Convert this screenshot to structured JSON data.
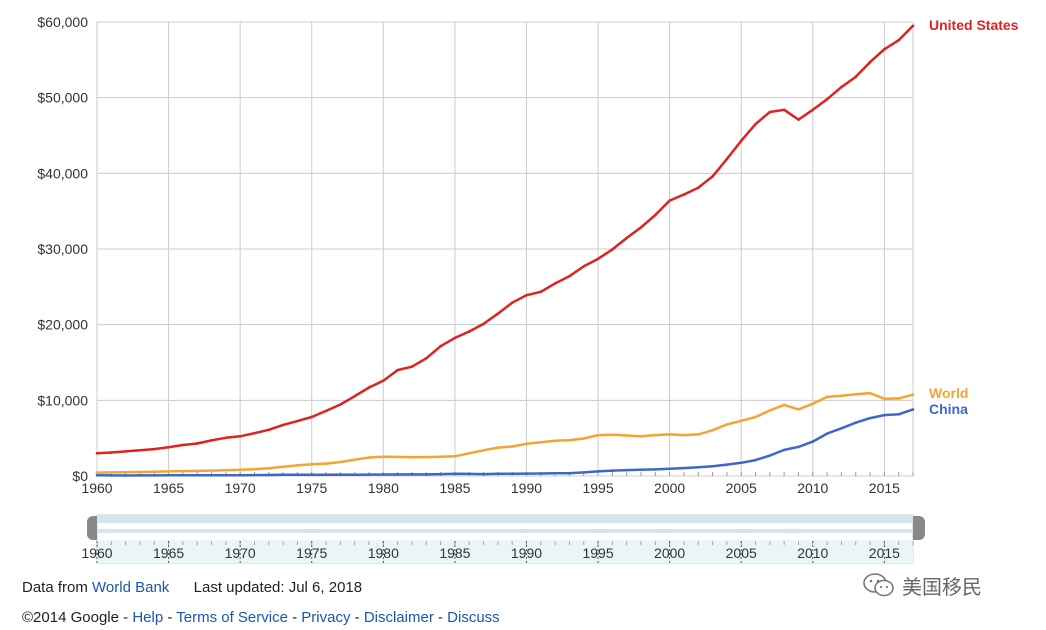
{
  "chart_data": {
    "type": "line",
    "title": "",
    "xlabel": "",
    "ylabel": "",
    "xlim": [
      1960,
      2017
    ],
    "ylim": [
      0,
      60000
    ],
    "x_ticks": [
      "1960",
      "1965",
      "1970",
      "1975",
      "1980",
      "1985",
      "1990",
      "1995",
      "2000",
      "2005",
      "2010",
      "2015"
    ],
    "y_ticks": [
      "$0",
      "$10,000",
      "$20,000",
      "$30,000",
      "$40,000",
      "$50,000",
      "$60,000"
    ],
    "grid": true,
    "legend": "inline labels at right end of lines",
    "x": [
      1960,
      1961,
      1962,
      1963,
      1964,
      1965,
      1966,
      1967,
      1968,
      1969,
      1970,
      1971,
      1972,
      1973,
      1974,
      1975,
      1976,
      1977,
      1978,
      1979,
      1980,
      1981,
      1982,
      1983,
      1984,
      1985,
      1986,
      1987,
      1988,
      1989,
      1990,
      1991,
      1992,
      1993,
      1994,
      1995,
      1996,
      1997,
      1998,
      1999,
      2000,
      2001,
      2002,
      2003,
      2004,
      2005,
      2006,
      2007,
      2008,
      2009,
      2010,
      2011,
      2012,
      2013,
      2014,
      2015,
      2016,
      2017
    ],
    "series": [
      {
        "name": "United States",
        "color": "#dd2222",
        "values": [
          3000,
          3100,
          3250,
          3400,
          3550,
          3800,
          4100,
          4300,
          4700,
          5050,
          5250,
          5650,
          6100,
          6750,
          7250,
          7800,
          8600,
          9450,
          10550,
          11700,
          12600,
          14000,
          14450,
          15550,
          17150,
          18250,
          19100,
          20100,
          21450,
          22900,
          23900,
          24350,
          25450,
          26400,
          27700,
          28700,
          29950,
          31450,
          32850,
          34500,
          36400,
          37200,
          38100,
          39600,
          41900,
          44300,
          46500,
          48100,
          48400,
          47100,
          48400,
          49800,
          51400,
          52750,
          54700,
          56400,
          57600,
          59500
        ]
      },
      {
        "name": "World",
        "color": "#f4a430",
        "values": [
          450,
          480,
          500,
          530,
          570,
          610,
          650,
          680,
          710,
          760,
          820,
          890,
          1020,
          1220,
          1400,
          1540,
          1640,
          1850,
          2150,
          2450,
          2550,
          2520,
          2480,
          2500,
          2550,
          2600,
          3000,
          3400,
          3750,
          3900,
          4250,
          4450,
          4650,
          4720,
          4950,
          5400,
          5450,
          5350,
          5250,
          5400,
          5500,
          5400,
          5500,
          6050,
          6800,
          7300,
          7800,
          8650,
          9400,
          8800,
          9550,
          10450,
          10600,
          10800,
          10950,
          10200,
          10250,
          10750
        ]
      },
      {
        "name": "China",
        "color": "#3f67c9",
        "values": [
          90,
          75,
          70,
          75,
          85,
          100,
          105,
          100,
          90,
          100,
          110,
          115,
          130,
          155,
          160,
          175,
          165,
          185,
          155,
          185,
          195,
          200,
          205,
          210,
          250,
          295,
          280,
          250,
          285,
          310,
          320,
          330,
          365,
          375,
          475,
          610,
          710,
          780,
          830,
          870,
          960,
          1050,
          1150,
          1290,
          1510,
          1750,
          2100,
          2700,
          3450,
          3850,
          4550,
          5600,
          6300,
          7050,
          7650,
          8050,
          8150,
          8800
        ]
      }
    ]
  },
  "range_slider": {
    "ticks": [
      "1960",
      "1965",
      "1970",
      "1975",
      "1980",
      "1985",
      "1990",
      "1995",
      "2000",
      "2005",
      "2010",
      "2015"
    ]
  },
  "footer": {
    "data_from_label": "Data from",
    "data_source_link": "World Bank",
    "last_updated": "Last updated: Jul 6, 2018",
    "copyright": "©2014 Google",
    "sep": " - ",
    "links": [
      "Help",
      "Terms of Service",
      "Privacy",
      "Disclaimer",
      "Discuss"
    ]
  },
  "watermark": {
    "text": "美国移民",
    "icon": "wechat-icon"
  }
}
